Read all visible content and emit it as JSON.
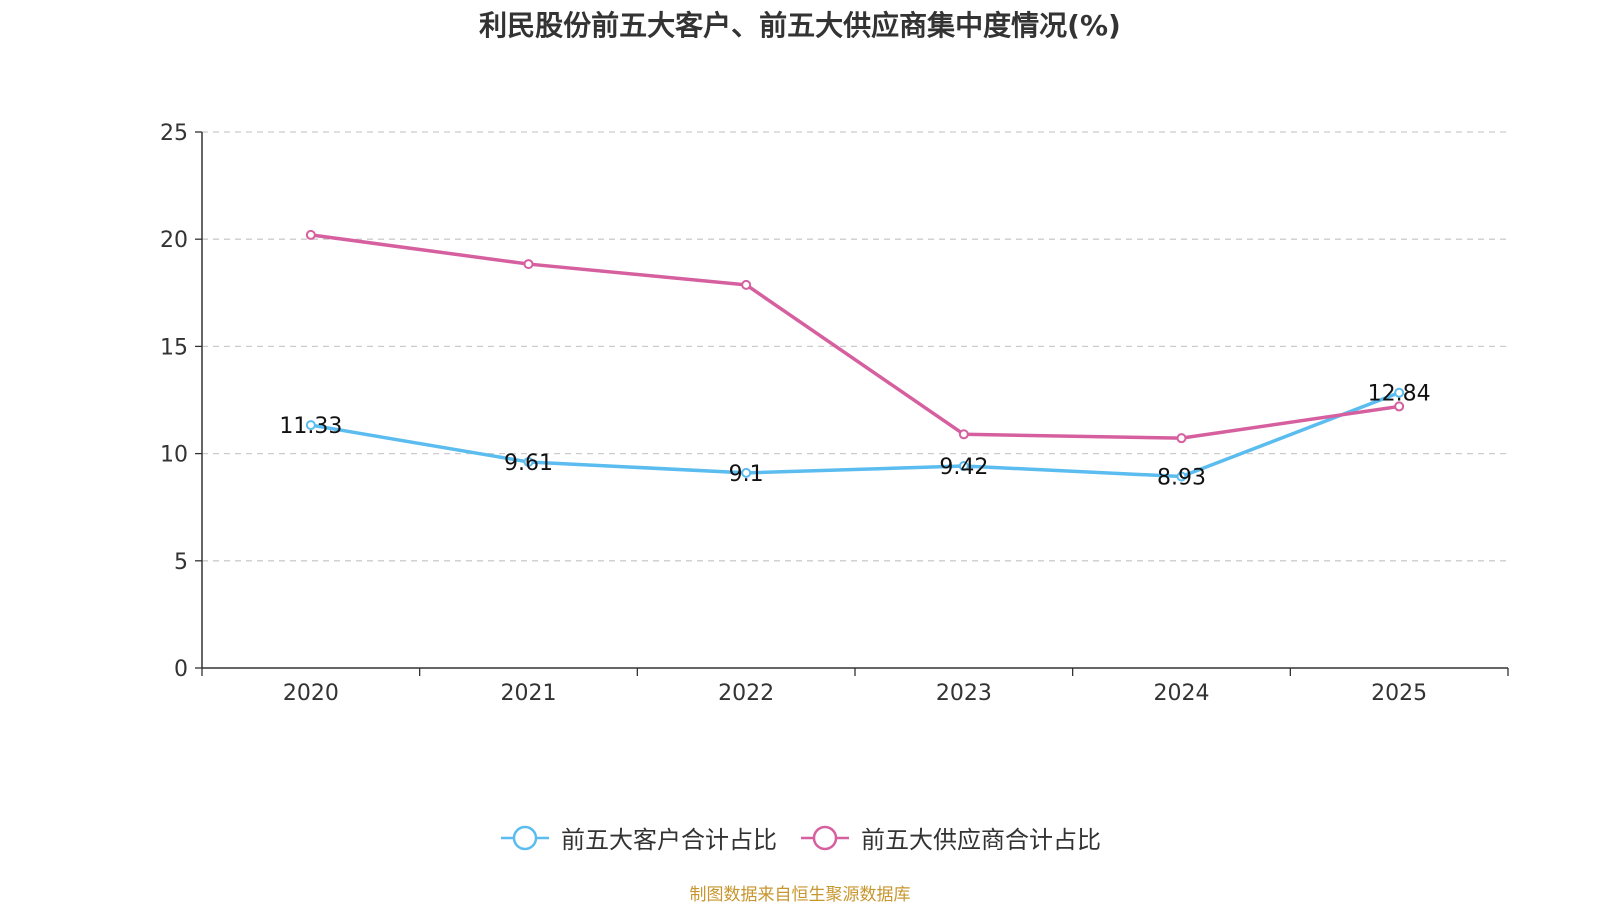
{
  "chart_data": {
    "type": "line",
    "title": "利民股份前五大客户、前五大供应商集中度情况(%)",
    "categories": [
      "2020",
      "2021",
      "2022",
      "2023",
      "2024",
      "2025"
    ],
    "xlabel": "",
    "ylabel": "",
    "ylim": [
      0,
      25
    ],
    "yticks": [
      0,
      5,
      10,
      15,
      20,
      25
    ],
    "grid": true,
    "legend_position": "bottom",
    "series": [
      {
        "name": "前五大客户合计占比",
        "color": "#5bbcf0",
        "values": [
          11.33,
          9.61,
          9.1,
          9.42,
          8.93,
          12.84
        ],
        "data_labels": [
          "11.33",
          "9.61",
          "9.1",
          "9.42",
          "8.93",
          "12.84"
        ]
      },
      {
        "name": "前五大供应商合计占比",
        "color": "#d6609f",
        "values": [
          20.2,
          18.84,
          17.87,
          10.9,
          10.72,
          12.2
        ],
        "data_labels": []
      }
    ]
  },
  "legend": {
    "items": [
      "前五大客户合计占比",
      "前五大供应商合计占比"
    ]
  },
  "source_note": {
    "text": "制图数据来自恒生聚源数据库",
    "color": "#c8962e"
  }
}
